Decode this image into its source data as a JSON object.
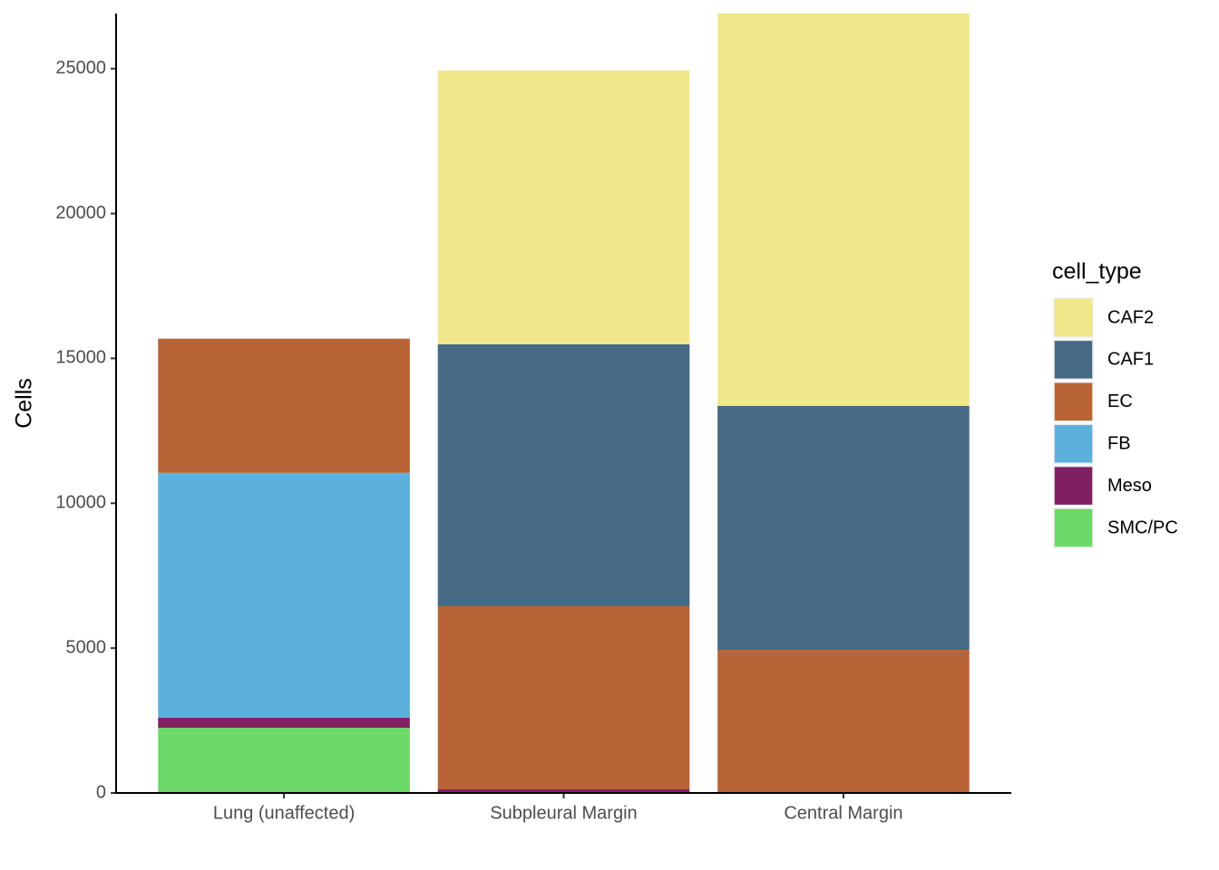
{
  "chart_data": {
    "type": "stacked_bar",
    "y_label": "Cells",
    "categories": [
      "Lung (unaffected)",
      "Subpleural Margin",
      "Central Margin"
    ],
    "legend_title": "cell_type",
    "series": [
      {
        "name": "CAF2",
        "color": "#f0e68a",
        "values": [
          0,
          9450,
          13550
        ]
      },
      {
        "name": "CAF1",
        "color": "#466a83",
        "values": [
          0,
          9040,
          8420
        ]
      },
      {
        "name": "EC",
        "color": "#b86437",
        "values": [
          4630,
          6320,
          4940
        ]
      },
      {
        "name": "FB",
        "color": "#5db0dc",
        "values": [
          8450,
          0,
          0
        ]
      },
      {
        "name": "Meso",
        "color": "#802063",
        "values": [
          350,
          125,
          0
        ]
      },
      {
        "name": "SMC/PC",
        "color": "#6cd86a",
        "values": [
          2250,
          0,
          0
        ]
      }
    ],
    "ylim": [
      0,
      26900
    ],
    "yticks": [
      0,
      5000,
      10000,
      15000,
      20000,
      25000
    ],
    "legend": "right"
  }
}
